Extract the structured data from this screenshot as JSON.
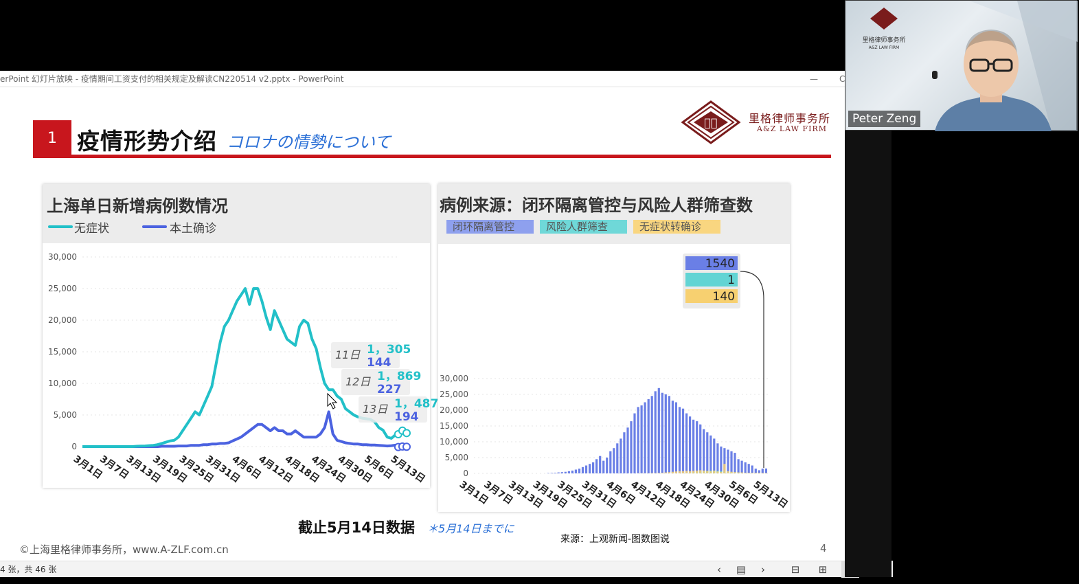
{
  "window": {
    "title": "erPoint 幻灯片放映  -  疫情期间工资支付的相关规定及解读CN220514 v2.pptx - PowerPoint",
    "minimize": "—",
    "edge": "C"
  },
  "slide": {
    "number": "1",
    "title": "疫情形势介绍",
    "subtitle": "コロナの情勢について",
    "firm_name_cn": "里格律师事务所",
    "firm_name_en": "A&Z LAW FIRM",
    "logo_chars": "𨤲格",
    "caption": "截止5月14日数据",
    "caption_jp": "＊5月14日までに",
    "source": "来源：上观新闻-图数图说",
    "copyright": "©上海里格律师事务所，www.A-ZLF.com.cn",
    "page_number": "4"
  },
  "status": {
    "text": "4 张，共 46 张"
  },
  "webcam": {
    "name": "Peter Zeng",
    "logo_cn": "里格律师事务所",
    "logo_en": "A&Z LAW FIRM"
  },
  "chart_data": [
    {
      "type": "line",
      "title": "上海单日新增病例数情况",
      "ylim": [
        0,
        30000
      ],
      "yticks": [
        "30,000",
        "25,000",
        "20,000",
        "15,000",
        "10,000",
        "5,000",
        "0"
      ],
      "xticks": [
        "3月1日",
        "3月7日",
        "3月13日",
        "3月19日",
        "3月25日",
        "3月31日",
        "4月6日",
        "4月12日",
        "4月18日",
        "4月24日",
        "4月30日",
        "5月6日",
        "5月13日"
      ],
      "legend": "top-left",
      "colors": {
        "asymptomatic": "#22c0c8",
        "confirmed": "#4b62e0"
      },
      "series": [
        {
          "name": "无症状",
          "values": [
            0,
            0,
            0,
            0,
            0,
            0,
            0,
            0,
            0,
            0,
            0,
            0,
            0,
            50,
            80,
            100,
            150,
            200,
            300,
            500,
            700,
            900,
            1000,
            1500,
            2500,
            3500,
            4500,
            5500,
            5000,
            6500,
            8000,
            9500,
            13000,
            16500,
            19000,
            20000,
            21500,
            23000,
            24000,
            25000,
            22500,
            25000,
            25000,
            23000,
            20500,
            18500,
            21500,
            20000,
            18500,
            17000,
            16500,
            16000,
            19000,
            20000,
            19500,
            17000,
            15500,
            12500,
            10000,
            9000,
            9000,
            8000,
            7500,
            6000,
            5500,
            5000,
            4700,
            4500,
            4400,
            4300,
            3900,
            3000,
            2600,
            1500,
            1305,
            1869,
            1487
          ]
        },
        {
          "name": "本土确诊",
          "values": [
            0,
            0,
            0,
            0,
            0,
            0,
            0,
            0,
            0,
            0,
            0,
            0,
            0,
            0,
            0,
            0,
            0,
            0,
            0,
            50,
            50,
            50,
            50,
            100,
            100,
            100,
            200,
            200,
            200,
            300,
            300,
            400,
            400,
            500,
            500,
            600,
            900,
            1200,
            1500,
            2000,
            2500,
            3000,
            3500,
            3500,
            3000,
            2500,
            3000,
            2500,
            2500,
            2000,
            2000,
            2500,
            2000,
            1500,
            1500,
            1500,
            1500,
            2000,
            3000,
            5500,
            2000,
            1000,
            800,
            600,
            500,
            400,
            400,
            300,
            300,
            250,
            250,
            200,
            150,
            100,
            144,
            227,
            194
          ]
        }
      ],
      "annotations": [
        {
          "day": "11日",
          "asymptomatic": "1，305",
          "confirmed": "144"
        },
        {
          "day": "12日",
          "asymptomatic": "1，869",
          "confirmed": "227"
        },
        {
          "day": "13日",
          "asymptomatic": "1，487",
          "confirmed": "194"
        }
      ]
    },
    {
      "type": "bar",
      "title": "病例来源：闭环隔离管控与风险人群筛查数",
      "ylim": [
        0,
        30000
      ],
      "yticks": [
        "30,000",
        "25,000",
        "20,000",
        "15,000",
        "10,000",
        "5,000",
        "0"
      ],
      "xticks": [
        "3月1日",
        "3月7日",
        "3月13日",
        "3月19日",
        "3月25日",
        "3月31日",
        "4月6日",
        "4月12日",
        "4月18日",
        "4月24日",
        "4月30日",
        "5月6日",
        "5月13日"
      ],
      "legend": "top-left",
      "colors": {
        "closed_loop": "#6a7fe6",
        "risk_screening": "#62d4d4",
        "asymptomatic_to_confirmed": "#f7d070"
      },
      "series": [
        {
          "name": "闭环隔离管控",
          "values": [
            0,
            0,
            0,
            0,
            0,
            0,
            0,
            0,
            0,
            0,
            0,
            0,
            0,
            0,
            0,
            0,
            0,
            0,
            0,
            0,
            0,
            100,
            150,
            200,
            300,
            400,
            500,
            700,
            900,
            1200,
            1500,
            2000,
            2500,
            3000,
            3500,
            4500,
            5500,
            4000,
            5000,
            7000,
            8000,
            9500,
            11000,
            13000,
            14500,
            16500,
            19000,
            21000,
            21500,
            22500,
            23500,
            24500,
            26000,
            27000,
            25500,
            25000,
            24500,
            23000,
            22500,
            21000,
            20500,
            19000,
            18000,
            17000,
            16500,
            15500,
            14000,
            13000,
            12000,
            11000,
            9500,
            8500,
            8000,
            7500,
            7000,
            6500,
            4500,
            4000,
            3500,
            3000,
            2500,
            1500,
            1000,
            1500,
            1540
          ]
        },
        {
          "name": "风险人群筛查",
          "values": [
            0,
            0,
            0,
            0,
            0,
            0,
            0,
            0,
            0,
            0,
            0,
            0,
            0,
            0,
            0,
            0,
            0,
            0,
            0,
            0,
            0,
            50,
            50,
            50,
            50,
            50,
            100,
            150,
            200,
            300,
            400,
            500,
            600,
            700,
            800,
            900,
            900,
            800,
            700,
            600,
            500,
            400,
            300,
            300,
            200,
            100,
            100,
            100,
            50,
            50,
            50,
            1
          ]
        },
        {
          "name": "无症状转确诊",
          "values": [
            0,
            0,
            0,
            0,
            0,
            0,
            0,
            0,
            0,
            0,
            0,
            0,
            0,
            0,
            0,
            0,
            0,
            0,
            0,
            0,
            0,
            0,
            0,
            0,
            50,
            50,
            50,
            50,
            100,
            100,
            150,
            200,
            300,
            400,
            500,
            600,
            700,
            700,
            800,
            700,
            800,
            900,
            1000,
            900,
            800,
            700,
            900,
            600,
            500,
            3000,
            700,
            500,
            400,
            300,
            300,
            200,
            200,
            200,
            200,
            200,
            150,
            140
          ]
        }
      ],
      "tooltip": {
        "closed_loop": "1540",
        "risk_screening": "1",
        "asymptomatic_to_confirmed": "140"
      }
    }
  ]
}
